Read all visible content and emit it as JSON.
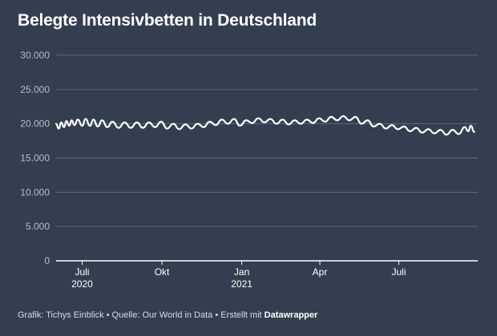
{
  "title": "Belegte Intensivbetten in Deutschland",
  "footer": {
    "credit": "Grafik: Tichys Einblick • Quelle: Our World in Data • Erstellt mit ",
    "tool": "Datawrapper"
  },
  "colors": {
    "background": "#333f50",
    "line": "#ffffff",
    "grid": "#5d6878",
    "axis_text": "#b4bcc7"
  },
  "chart_data": {
    "type": "line",
    "title": "Belegte Intensivbetten in Deutschland",
    "xlabel": "",
    "ylabel": "",
    "ylim": [
      0,
      30000
    ],
    "grid": true,
    "xlim": [
      "2020-06-01",
      "2021-09-30"
    ],
    "y_ticks": [
      {
        "value": 0,
        "label": "0"
      },
      {
        "value": 5000,
        "label": "5.000"
      },
      {
        "value": 10000,
        "label": "10.000"
      },
      {
        "value": 15000,
        "label": "15.000"
      },
      {
        "value": 20000,
        "label": "20.000"
      },
      {
        "value": 25000,
        "label": "25.000"
      },
      {
        "value": 30000,
        "label": "30.000"
      }
    ],
    "x_ticks": [
      {
        "date": "2020-07-01",
        "label": "Juli",
        "year": "2020"
      },
      {
        "date": "2020-10-01",
        "label": "Okt",
        "year": ""
      },
      {
        "date": "2021-01-01",
        "label": "Jan",
        "year": "2021"
      },
      {
        "date": "2021-04-01",
        "label": "Apr",
        "year": ""
      },
      {
        "date": "2021-07-01",
        "label": "Juli",
        "year": ""
      }
    ],
    "series": [
      {
        "points": [
          [
            "2020-06-01",
            20000
          ],
          [
            "2020-06-04",
            19300
          ],
          [
            "2020-06-07",
            20200
          ],
          [
            "2020-06-10",
            19500
          ],
          [
            "2020-06-13",
            20400
          ],
          [
            "2020-06-16",
            19700
          ],
          [
            "2020-06-19",
            20500
          ],
          [
            "2020-06-22",
            19800
          ],
          [
            "2020-06-26",
            20600
          ],
          [
            "2020-07-01",
            19700
          ],
          [
            "2020-07-05",
            20700
          ],
          [
            "2020-07-10",
            19700
          ],
          [
            "2020-07-14",
            20600
          ],
          [
            "2020-07-19",
            19600
          ],
          [
            "2020-07-24",
            20500
          ],
          [
            "2020-07-30",
            19500
          ],
          [
            "2020-08-05",
            20300
          ],
          [
            "2020-08-12",
            19400
          ],
          [
            "2020-08-19",
            20200
          ],
          [
            "2020-08-26",
            19400
          ],
          [
            "2020-09-02",
            20200
          ],
          [
            "2020-09-09",
            19400
          ],
          [
            "2020-09-16",
            20200
          ],
          [
            "2020-09-23",
            19500
          ],
          [
            "2020-09-30",
            20300
          ],
          [
            "2020-10-07",
            19300
          ],
          [
            "2020-10-14",
            20000
          ],
          [
            "2020-10-21",
            19200
          ],
          [
            "2020-10-28",
            19900
          ],
          [
            "2020-11-04",
            19300
          ],
          [
            "2020-11-11",
            20000
          ],
          [
            "2020-11-18",
            19500
          ],
          [
            "2020-11-25",
            20300
          ],
          [
            "2020-12-02",
            19800
          ],
          [
            "2020-12-09",
            20600
          ],
          [
            "2020-12-16",
            20000
          ],
          [
            "2020-12-23",
            20700
          ],
          [
            "2020-12-30",
            19700
          ],
          [
            "2021-01-06",
            20500
          ],
          [
            "2021-01-13",
            20100
          ],
          [
            "2021-01-20",
            20800
          ],
          [
            "2021-01-27",
            20200
          ],
          [
            "2021-02-03",
            20700
          ],
          [
            "2021-02-10",
            20000
          ],
          [
            "2021-02-17",
            20600
          ],
          [
            "2021-02-24",
            19900
          ],
          [
            "2021-03-03",
            20500
          ],
          [
            "2021-03-10",
            20000
          ],
          [
            "2021-03-17",
            20600
          ],
          [
            "2021-03-24",
            20100
          ],
          [
            "2021-03-31",
            20800
          ],
          [
            "2021-04-07",
            20300
          ],
          [
            "2021-04-14",
            21000
          ],
          [
            "2021-04-21",
            20500
          ],
          [
            "2021-04-28",
            21100
          ],
          [
            "2021-05-05",
            20500
          ],
          [
            "2021-05-12",
            21000
          ],
          [
            "2021-05-19",
            20000
          ],
          [
            "2021-05-26",
            20500
          ],
          [
            "2021-06-02",
            19600
          ],
          [
            "2021-06-09",
            20000
          ],
          [
            "2021-06-16",
            19300
          ],
          [
            "2021-06-23",
            19800
          ],
          [
            "2021-06-30",
            19200
          ],
          [
            "2021-07-07",
            19600
          ],
          [
            "2021-07-14",
            18900
          ],
          [
            "2021-07-21",
            19400
          ],
          [
            "2021-07-28",
            18700
          ],
          [
            "2021-08-04",
            19200
          ],
          [
            "2021-08-11",
            18600
          ],
          [
            "2021-08-18",
            19100
          ],
          [
            "2021-08-25",
            18400
          ],
          [
            "2021-09-01",
            19100
          ],
          [
            "2021-09-08",
            18500
          ],
          [
            "2021-09-15",
            19500
          ],
          [
            "2021-09-19",
            18900
          ],
          [
            "2021-09-22",
            19700
          ],
          [
            "2021-09-26",
            18800
          ]
        ]
      }
    ]
  }
}
